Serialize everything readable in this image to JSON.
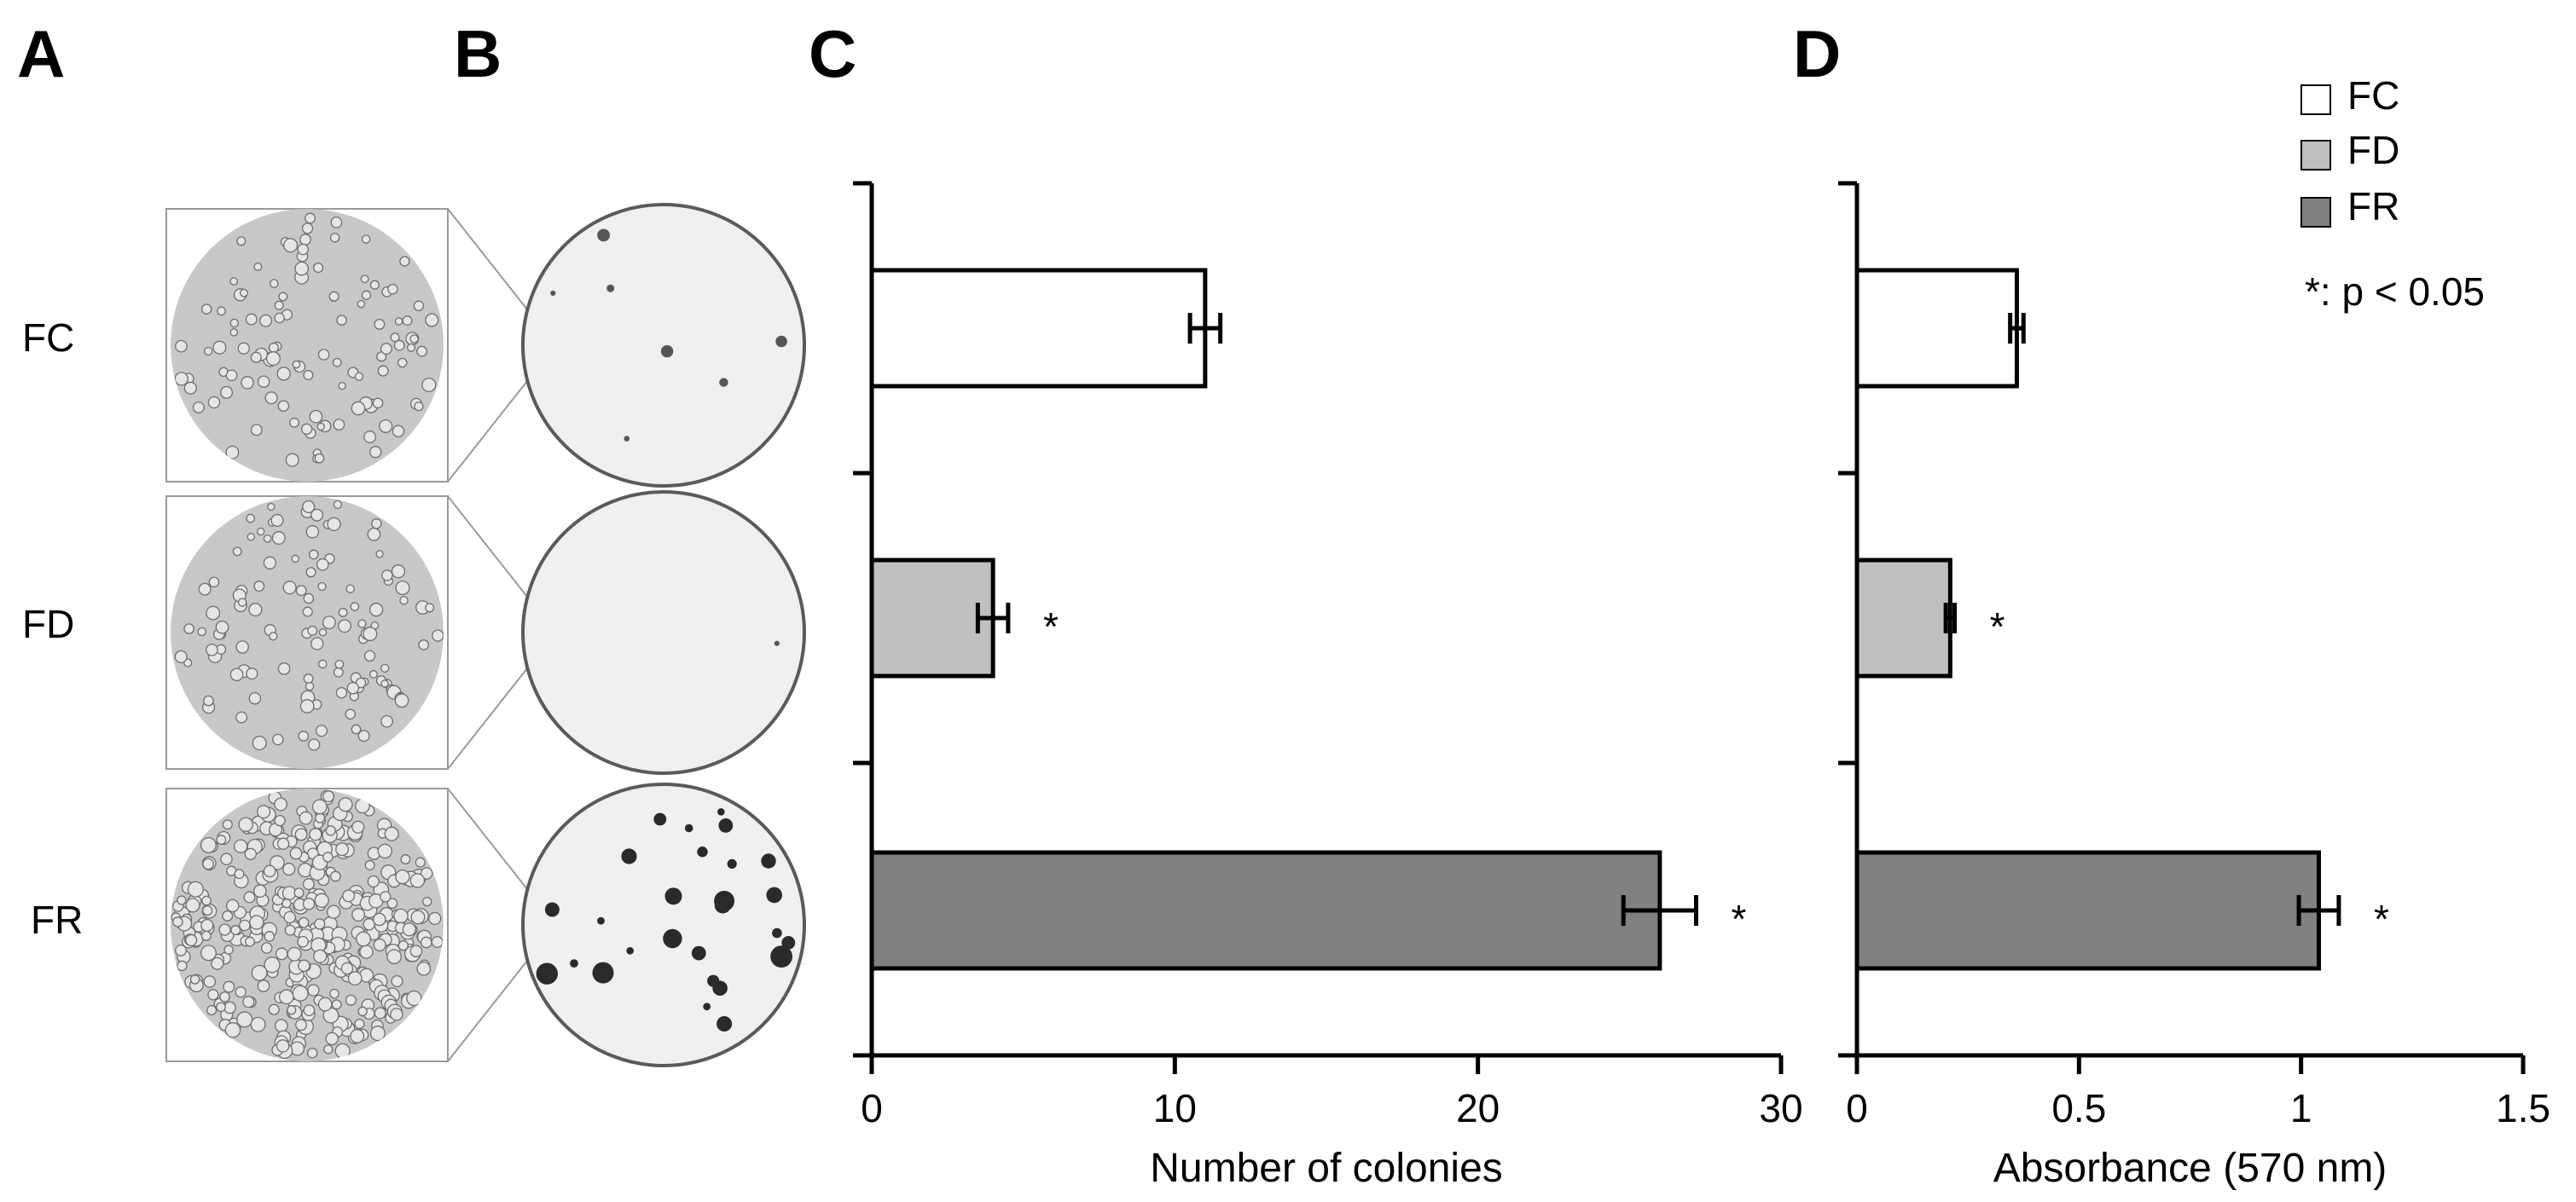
{
  "panels": {
    "a": "A",
    "b": "B",
    "c": "C",
    "d": "D"
  },
  "rows": [
    "FC",
    "FD",
    "FR"
  ],
  "legend": {
    "items": [
      {
        "label": "FC",
        "color": "#ffffff"
      },
      {
        "label": "FD",
        "color": "#c0c0c0"
      },
      {
        "label": "FR",
        "color": "#808080"
      }
    ],
    "note": "*: p < 0.05"
  },
  "colors": {
    "FC": "#ffffff",
    "FD": "#c0c0c0",
    "FR": "#808080",
    "stroke": "#000000",
    "micro_bg": "#c8c8c8",
    "plate_bg": "#f0f0f0"
  },
  "chart_data": [
    {
      "type": "bar",
      "orientation": "horizontal",
      "panel": "C",
      "categories": [
        "FC",
        "FD",
        "FR"
      ],
      "values": [
        11,
        4,
        26
      ],
      "errors": [
        0.5,
        0.5,
        1.2
      ],
      "significant": [
        false,
        true,
        true
      ],
      "star": "*",
      "xlabel": "Number of colonies",
      "xlim": [
        0,
        30
      ],
      "xticks": [
        0,
        10,
        20,
        30
      ],
      "xtick_labels": [
        "0",
        "10",
        "20",
        "30"
      ]
    },
    {
      "type": "bar",
      "orientation": "horizontal",
      "panel": "D",
      "categories": [
        "FC",
        "FD",
        "FR"
      ],
      "values": [
        0.36,
        0.21,
        1.04
      ],
      "errors": [
        0.015,
        0.01,
        0.045
      ],
      "significant": [
        false,
        true,
        true
      ],
      "star": "*",
      "xlabel": "Absorbance (570 nm)",
      "xlim": [
        0,
        1.5
      ],
      "xticks": [
        0,
        0.5,
        1,
        1.5
      ],
      "xtick_labels": [
        "0",
        "0.5",
        "1",
        "1.5"
      ]
    }
  ]
}
